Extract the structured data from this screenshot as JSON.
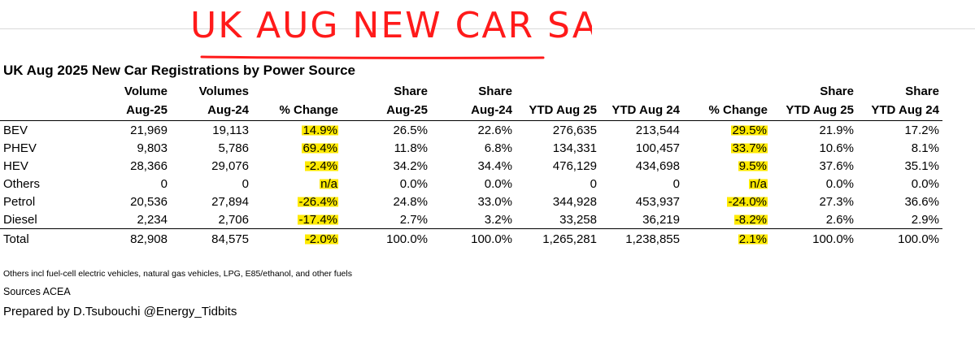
{
  "handwritten_title": "UK AUG NEW CAR SALES",
  "title": "UK Aug 2025 New Car Registrations by Power Source",
  "columns_top": [
    "",
    "Volume",
    "Volumes",
    "",
    "Share",
    "Share",
    "",
    "",
    "",
    "Share",
    "Share"
  ],
  "columns_bottom": [
    "",
    "Aug-25",
    "Aug-24",
    "% Change",
    "Aug-25",
    "Aug-24",
    "YTD Aug 25",
    "YTD Aug 24",
    "% Change",
    "YTD Aug 25",
    "YTD Aug 24"
  ],
  "rows": [
    {
      "label": "BEV",
      "vol25": "21,969",
      "vol24": "19,113",
      "chg": "14.9%",
      "sh25": "26.5%",
      "sh24": "22.6%",
      "ytd25": "276,635",
      "ytd24": "213,544",
      "ytdchg": "29.5%",
      "ytdsh25": "21.9%",
      "ytdsh24": "17.2%"
    },
    {
      "label": "PHEV",
      "vol25": "9,803",
      "vol24": "5,786",
      "chg": "69.4%",
      "sh25": "11.8%",
      "sh24": "6.8%",
      "ytd25": "134,331",
      "ytd24": "100,457",
      "ytdchg": "33.7%",
      "ytdsh25": "10.6%",
      "ytdsh24": "8.1%"
    },
    {
      "label": "HEV",
      "vol25": "28,366",
      "vol24": "29,076",
      "chg": "-2.4%",
      "sh25": "34.2%",
      "sh24": "34.4%",
      "ytd25": "476,129",
      "ytd24": "434,698",
      "ytdchg": "9.5%",
      "ytdsh25": "37.6%",
      "ytdsh24": "35.1%"
    },
    {
      "label": "Others",
      "vol25": "0",
      "vol24": "0",
      "chg": "n/a",
      "sh25": "0.0%",
      "sh24": "0.0%",
      "ytd25": "0",
      "ytd24": "0",
      "ytdchg": "n/a",
      "ytdsh25": "0.0%",
      "ytdsh24": "0.0%"
    },
    {
      "label": "Petrol",
      "vol25": "20,536",
      "vol24": "27,894",
      "chg": "-26.4%",
      "sh25": "24.8%",
      "sh24": "33.0%",
      "ytd25": "344,928",
      "ytd24": "453,937",
      "ytdchg": "-24.0%",
      "ytdsh25": "27.3%",
      "ytdsh24": "36.6%"
    },
    {
      "label": "Diesel",
      "vol25": "2,234",
      "vol24": "2,706",
      "chg": "-17.4%",
      "sh25": "2.7%",
      "sh24": "3.2%",
      "ytd25": "33,258",
      "ytd24": "36,219",
      "ytdchg": "-8.2%",
      "ytdsh25": "2.6%",
      "ytdsh24": "2.9%"
    },
    {
      "label": "Total",
      "vol25": "82,908",
      "vol24": "84,575",
      "chg": "-2.0%",
      "sh25": "100.0%",
      "sh24": "100.0%",
      "ytd25": "1,265,281",
      "ytd24": "1,238,855",
      "ytdchg": "2.1%",
      "ytdsh25": "100.0%",
      "ytdsh24": "100.0%"
    }
  ],
  "note": "Others incl fuel-cell electric vehicles, natural gas vehicles, LPG, E85/ethanol, and other fuels",
  "sources": "Sources ACEA",
  "prepared": "Prepared by D.Tsubouchi  @Energy_Tidbits",
  "colors": {
    "highlight": "#ffea00",
    "handwriting": "#ff1a1a",
    "marker": "#1e7a1e"
  }
}
